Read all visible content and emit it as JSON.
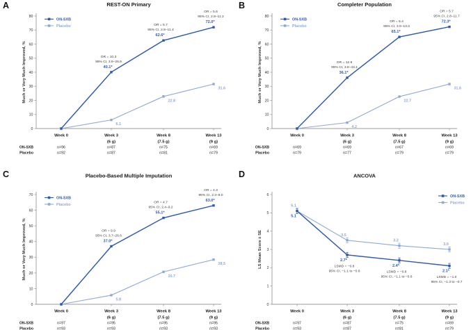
{
  "figure": {
    "colors": {
      "on_sxb": "#2f5ab0",
      "placebo": "#8fa9d9",
      "axis": "#9b9b9b",
      "text": "#333333",
      "annotation": "#3c3c3c",
      "title": "#1a1a1a"
    },
    "legend_labels": [
      "ON-SXB",
      "Placebo"
    ],
    "x_axis": {
      "tick_labels": [
        [
          "Week 0",
          ""
        ],
        [
          "Week 3",
          "(6 g)"
        ],
        [
          "Week 8",
          "(7.5 g)"
        ],
        [
          "Week 13",
          "(9 g)"
        ]
      ]
    },
    "n_table_row_labels": [
      "ON-SXB",
      "Placebo"
    ]
  },
  "chart_data": [
    {
      "panel": "A",
      "type": "line",
      "title": "REST-ON Primary",
      "xlabel": "",
      "ylabel": "Much or Very Much Improved, %",
      "categories": [
        "Week 0",
        "Week 3 (6 g)",
        "Week 8 (7.5 g)",
        "Week 13 (9 g)"
      ],
      "ylim": [
        0,
        80
      ],
      "ytick_step": 10,
      "grid": false,
      "legend_position": "top-left",
      "series": [
        {
          "name": "ON-SXB",
          "values": [
            0,
            40.1,
            62.6,
            72.0
          ],
          "point_labels": [
            "",
            "40.1*",
            "62.6*",
            "72.0*"
          ],
          "label_side": "above"
        },
        {
          "name": "Placebo",
          "values": [
            0,
            6.1,
            22.8,
            31.6
          ],
          "point_labels": [
            "",
            "6.1",
            "22.8",
            "31.6"
          ],
          "label_side": "below-right"
        }
      ],
      "annotations": [
        {
          "x_index": 1,
          "lines": [
            "OR = 10.3",
            "95% CI, 3.9–26.9"
          ]
        },
        {
          "x_index": 2,
          "lines": [
            "OR = 5.7",
            "95% CI, 2.8–11.4"
          ]
        },
        {
          "x_index": 3,
          "lines": [
            "OR = 5.6",
            "95% CI, 2.8–11.2"
          ]
        }
      ],
      "n_table": [
        [
          "n=96",
          "n=87",
          "n=75",
          "n=69"
        ],
        [
          "n=92",
          "n=87",
          "n=81",
          "n=79"
        ]
      ]
    },
    {
      "panel": "B",
      "type": "line",
      "title": "Completer Population",
      "xlabel": "",
      "ylabel": "Much or Very Much Improved, %",
      "categories": [
        "Week 0",
        "Week 3 (6 g)",
        "Week 8 (7.5 g)",
        "Week 13 (9 g)"
      ],
      "ylim": [
        0,
        80
      ],
      "ytick_step": 10,
      "grid": false,
      "legend_position": "top-left",
      "series": [
        {
          "name": "ON-SXB",
          "values": [
            0,
            36.1,
            65.1,
            72.3
          ],
          "point_labels": [
            "",
            "36.1*",
            "65.1*",
            "72.3*"
          ],
          "label_side": "above"
        },
        {
          "name": "Placebo",
          "values": [
            0,
            4.2,
            22.7,
            31.6
          ],
          "point_labels": [
            "",
            "4.2",
            "22.7",
            "31.6"
          ],
          "label_side": "below-right"
        }
      ],
      "annotations": [
        {
          "x_index": 1,
          "lines": [
            "OR = 12.9",
            "95% CI, 3.8–43.1"
          ]
        },
        {
          "x_index": 2,
          "lines": [
            "OR = 6.4",
            "95% CI, 3.0–13.3"
          ]
        },
        {
          "x_index": 3,
          "lines": [
            "OR = 5.7",
            "95% CI, 2.8–11.7"
          ]
        }
      ],
      "n_table": [
        [
          "n=69",
          "n=69",
          "n=67",
          "n=69"
        ],
        [
          "n=79",
          "n=77",
          "n=79",
          "n=79"
        ]
      ]
    },
    {
      "panel": "C",
      "type": "line",
      "title": "Placebo-Based Multiple Imputation",
      "xlabel": "",
      "ylabel": "Much or Very Much Improved, %",
      "categories": [
        "Week 0",
        "Week 3 (6 g)",
        "Week 8 (7.5 g)",
        "Week 13 (9 g)"
      ],
      "ylim": [
        0,
        70
      ],
      "ytick_step": 10,
      "grid": false,
      "legend_position": "top-left",
      "series": [
        {
          "name": "ON-SXB",
          "values": [
            0,
            37.0,
            55.1,
            63.0
          ],
          "point_labels": [
            "",
            "37.0*",
            "55.1*",
            "63.0*"
          ],
          "label_side": "above"
        },
        {
          "name": "Placebo",
          "values": [
            0,
            5.8,
            20.7,
            28.5
          ],
          "point_labels": [
            "",
            "5.8",
            "20.7",
            "28.5"
          ],
          "label_side": "below-right"
        }
      ],
      "annotations": [
        {
          "x_index": 1,
          "lines": [
            "OR = 9.9",
            "95% CI, 3.7–26.6"
          ]
        },
        {
          "x_index": 2,
          "lines": [
            "OR = 4.7",
            "95% CI, 2.4–9.2"
          ]
        },
        {
          "x_index": 3,
          "lines": [
            "OR = 4.3",
            "95% CI, 2.3–8.0"
          ]
        }
      ],
      "n_table": [
        [
          "n=97",
          "n=95",
          "n=95",
          "n=95"
        ],
        [
          "n=93",
          "n=93",
          "n=93",
          "n=93"
        ]
      ]
    },
    {
      "panel": "D",
      "type": "line",
      "title": "ANCOVA",
      "xlabel": "",
      "ylabel": "LS Mean Score ± SE",
      "categories": [
        "Week 0",
        "Week 3 (6 g)",
        "Week 8 (7.5 g)",
        "Week 13 (9 g)"
      ],
      "ylim": [
        0,
        6
      ],
      "ytick_step": 1,
      "grid": false,
      "legend_position": "top-right",
      "error_bars_se": 0.1,
      "series": [
        {
          "name": "ON-SXB",
          "values": [
            5.1,
            2.7,
            2.4,
            2.1
          ],
          "point_labels": [
            "5.1",
            "2.7*",
            "2.4*",
            "2.1*"
          ],
          "label_side": "below"
        },
        {
          "name": "Placebo",
          "values": [
            5.1,
            3.5,
            3.2,
            3.0
          ],
          "point_labels": [
            "5.1",
            "3.5",
            "3.2",
            "3.0"
          ],
          "label_side": "above"
        }
      ],
      "annotations": [
        {
          "x_index": 1,
          "lines": [
            "LSMD = −0.8",
            "95% CI, −1.1 to −0.6"
          ]
        },
        {
          "x_index": 2,
          "lines": [
            "LSMD = −0.8",
            "95% CI, −1.1 to −0.6"
          ]
        },
        {
          "x_index": 3,
          "lines": [
            "LSMD = −1.0",
            "95% CI, −1.3 to −0.7"
          ]
        }
      ],
      "n_table": [
        [
          "n=97",
          "n=87",
          "n=75",
          "n=69"
        ],
        [
          "n=93",
          "n=87",
          "n=81",
          "n=79"
        ]
      ]
    }
  ]
}
